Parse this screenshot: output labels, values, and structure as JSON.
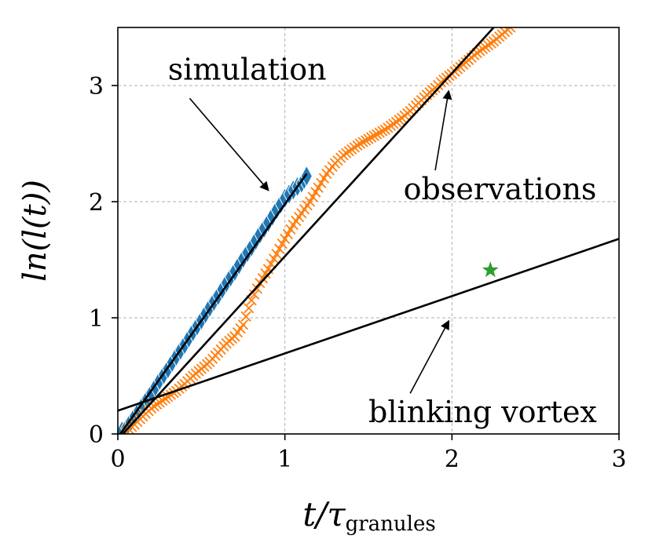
{
  "chart_data": {
    "type": "scatter",
    "xlabel": "t/τ",
    "xlabel_sub": "granules",
    "ylabel": "ln(l(t))",
    "xlim": [
      0,
      3
    ],
    "ylim": [
      0,
      3.5
    ],
    "xticks": [
      "0",
      "1",
      "2",
      "3"
    ],
    "yticks": [
      "0",
      "1",
      "2",
      "3"
    ],
    "grid": true,
    "colors": {
      "simulation": "#1f77b4",
      "observations": "#ff7f0e",
      "blinking": "#2ca02c",
      "fit": "#000000"
    },
    "series": [
      {
        "name": "simulation",
        "marker": "diamond",
        "x": [
          0.0,
          0.05,
          0.1,
          0.15,
          0.2,
          0.25,
          0.3,
          0.35,
          0.4,
          0.45,
          0.5,
          0.55,
          0.6,
          0.65,
          0.7,
          0.75,
          0.8,
          0.85,
          0.9,
          0.95,
          1.0,
          1.05,
          1.1,
          1.13
        ],
        "y": [
          0.0,
          0.05,
          0.15,
          0.25,
          0.35,
          0.46,
          0.56,
          0.67,
          0.77,
          0.88,
          0.98,
          1.09,
          1.19,
          1.3,
          1.4,
          1.51,
          1.61,
          1.72,
          1.82,
          1.93,
          2.03,
          2.1,
          2.16,
          2.22
        ]
      },
      {
        "name": "observations",
        "marker": "x",
        "x": [
          0.05,
          0.1,
          0.15,
          0.2,
          0.25,
          0.3,
          0.35,
          0.4,
          0.45,
          0.5,
          0.55,
          0.6,
          0.65,
          0.7,
          0.75,
          0.8,
          0.85,
          0.9,
          0.95,
          1.0,
          1.05,
          1.1,
          1.15,
          1.2,
          1.25,
          1.3,
          1.35,
          1.4,
          1.45,
          1.5,
          1.55,
          1.6,
          1.65,
          1.7,
          1.75,
          1.8,
          1.85,
          1.9,
          1.95,
          2.0,
          2.05,
          2.1,
          2.15,
          2.2,
          2.25,
          2.3,
          2.35
        ],
        "y": [
          0.02,
          0.08,
          0.15,
          0.22,
          0.27,
          0.32,
          0.37,
          0.43,
          0.5,
          0.56,
          0.62,
          0.7,
          0.78,
          0.84,
          0.94,
          1.15,
          1.3,
          1.42,
          1.55,
          1.68,
          1.8,
          1.9,
          2.0,
          2.12,
          2.24,
          2.33,
          2.4,
          2.45,
          2.5,
          2.54,
          2.58,
          2.62,
          2.67,
          2.72,
          2.78,
          2.85,
          2.92,
          2.98,
          3.05,
          3.1,
          3.16,
          3.22,
          3.28,
          3.33,
          3.38,
          3.44,
          3.5
        ]
      },
      {
        "name": "blinking vortex",
        "marker": "star",
        "x": [
          2.23
        ],
        "y": [
          1.41
        ]
      }
    ],
    "fit_lines": [
      {
        "for": "simulation",
        "x": [
          0.0,
          1.13
        ],
        "y": [
          -0.03,
          2.24
        ]
      },
      {
        "for": "observations",
        "x": [
          0.03,
          2.25
        ],
        "y": [
          0.0,
          3.5
        ]
      },
      {
        "for": "blinking",
        "x": [
          0.0,
          3.0
        ],
        "y": [
          0.2,
          1.68
        ]
      }
    ],
    "annotations": [
      {
        "text": "simulation",
        "x": 0.3,
        "y": 3.05,
        "arrow_to": [
          0.9,
          2.1
        ],
        "arrow_from": [
          0.43,
          2.89
        ]
      },
      {
        "text": "observations",
        "x": 1.71,
        "y": 2.02,
        "arrow_to": [
          1.98,
          2.95
        ],
        "arrow_from": [
          1.9,
          2.27
        ]
      },
      {
        "text": "blinking vortex",
        "x": 1.5,
        "y": 0.1,
        "arrow_to": [
          1.98,
          0.97
        ],
        "arrow_from": [
          1.75,
          0.35
        ]
      }
    ]
  }
}
